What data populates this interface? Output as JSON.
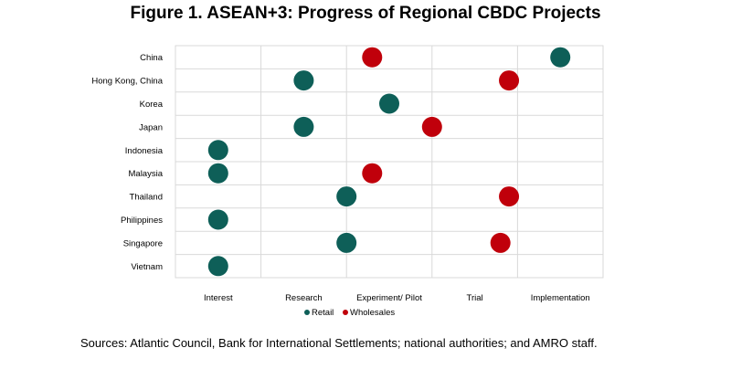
{
  "title": "Figure 1. ASEAN+3: Progress of Regional CBDC Projects",
  "source": "Sources: Atlantic Council, Bank for International Settlements; national authorities; and AMRO staff.",
  "colors": {
    "retail": "#0e5f58",
    "wholesale": "#c0000b",
    "grid": "#d9d9d9"
  },
  "chart_data": {
    "type": "scatter",
    "title": "Figure 1. ASEAN+3: Progress of Regional CBDC Projects",
    "grid": true,
    "legend_position": "bottom",
    "categories": [
      "China",
      "Hong Kong, China",
      "Korea",
      "Japan",
      "Indonesia",
      "Malaysia",
      "Thailand",
      "Philippines",
      "Singapore",
      "Vietnam"
    ],
    "stages": [
      "Interest",
      "Research",
      "Experiment/ Pilot",
      "Trial",
      "Implementation"
    ],
    "series": [
      {
        "name": "Retail",
        "color": "#0e5f58",
        "points": [
          {
            "category": "China",
            "stage": 4.0
          },
          {
            "category": "Hong Kong, China",
            "stage": 1.0
          },
          {
            "category": "Korea",
            "stage": 2.0
          },
          {
            "category": "Japan",
            "stage": 1.0
          },
          {
            "category": "Indonesia",
            "stage": 0.0
          },
          {
            "category": "Malaysia",
            "stage": 0.0
          },
          {
            "category": "Thailand",
            "stage": 1.5
          },
          {
            "category": "Philippines",
            "stage": 0.0
          },
          {
            "category": "Singapore",
            "stage": 1.5
          },
          {
            "category": "Vietnam",
            "stage": 0.0
          }
        ]
      },
      {
        "name": "Wholesales",
        "color": "#c0000b",
        "points": [
          {
            "category": "China",
            "stage": 1.8
          },
          {
            "category": "Hong Kong, China",
            "stage": 3.4
          },
          {
            "category": "Japan",
            "stage": 2.5
          },
          {
            "category": "Malaysia",
            "stage": 1.8
          },
          {
            "category": "Thailand",
            "stage": 3.4
          },
          {
            "category": "Singapore",
            "stage": 3.3
          }
        ]
      }
    ]
  }
}
